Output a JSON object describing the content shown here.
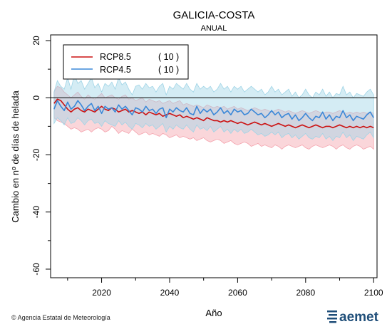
{
  "chart_data": {
    "type": "line",
    "title": "GALICIA-COSTA",
    "subtitle": "ANUAL",
    "xlabel": "Año",
    "ylabel": "Cambio en nº de días de helada",
    "xlim": [
      2005,
      2101
    ],
    "ylim": [
      -63,
      22
    ],
    "xticks": [
      2020,
      2040,
      2060,
      2080,
      2100
    ],
    "yticks": [
      20,
      0,
      -20,
      -40,
      -60
    ],
    "legend_position": "top-left",
    "reference_line": 0,
    "x_start": 2006,
    "series": [
      {
        "name": "RCP8.5",
        "count_label": "( 10 )",
        "color": "#cc1111",
        "band_color": "#f5a3ad",
        "values": [
          -2,
          -0.5,
          -1,
          -2.5,
          -4,
          -5,
          -4,
          -3.5,
          -4.5,
          -5,
          -4,
          -4.5,
          -5,
          -4,
          -3,
          -4,
          -4.5,
          -3.5,
          -4,
          -5,
          -4.5,
          -4,
          -5,
          -4.5,
          -5,
          -5.5,
          -5,
          -6,
          -5,
          -5.5,
          -6,
          -5.5,
          -6.5,
          -6,
          -5.5,
          -6,
          -6.5,
          -6,
          -7,
          -6.5,
          -7,
          -7.5,
          -7,
          -7.5,
          -8,
          -7,
          -7.5,
          -8,
          -8,
          -8.5,
          -8,
          -8.5,
          -8,
          -8.5,
          -9,
          -8.5,
          -9,
          -9.5,
          -9,
          -8.5,
          -9,
          -9.5,
          -9,
          -9.5,
          -10,
          -9.5,
          -9,
          -9.5,
          -10,
          -9.5,
          -10,
          -10.5,
          -10,
          -9.5,
          -10,
          -10.5,
          -10,
          -9.5,
          -10,
          -10.5,
          -10,
          -10,
          -10.5,
          -10,
          -9.5,
          -10,
          -10.5,
          -10,
          -10.5,
          -10,
          -10.5,
          -10,
          -10.5,
          -10,
          -10.5
        ],
        "lower": [
          -7,
          -8,
          -8.5,
          -9,
          -10,
          -11,
          -10.5,
          -11,
          -12,
          -11.5,
          -11,
          -12,
          -11,
          -10.5,
          -11,
          -12,
          -11.5,
          -10,
          -11,
          -12.5,
          -11.5,
          -12,
          -12.5,
          -11,
          -12,
          -13,
          -12.5,
          -12,
          -13,
          -12.5,
          -13,
          -13.5,
          -12.5,
          -13,
          -14,
          -13.5,
          -13,
          -14,
          -13.5,
          -14,
          -14.5,
          -14,
          -15,
          -14.5,
          -14,
          -15,
          -15.5,
          -15,
          -14.5,
          -15,
          -16,
          -15.5,
          -15,
          -16,
          -16.5,
          -16,
          -15.5,
          -16,
          -17,
          -16.5,
          -16,
          -17,
          -16.5,
          -17,
          -17.5,
          -16.5,
          -17,
          -18,
          -17,
          -16.5,
          -17,
          -17.5,
          -17,
          -16.5,
          -17.5,
          -18,
          -17,
          -16.5,
          -17,
          -17.5,
          -17,
          -16.5,
          -17,
          -18,
          -17,
          -16.5,
          -17.5,
          -18,
          -17,
          -16.5,
          -17,
          -18,
          -17.5,
          -17,
          -18
        ],
        "upper": [
          2,
          4,
          3.5,
          2,
          1,
          0,
          1,
          2,
          0.5,
          -0.5,
          1,
          0,
          -0.5,
          0.5,
          1.5,
          0,
          0.5,
          1,
          0,
          -0.5,
          0.5,
          1,
          -0.5,
          0,
          -1,
          -0.5,
          0,
          -1.5,
          -0.5,
          -1,
          -1.5,
          -1,
          -2,
          -1.5,
          -1,
          -2,
          -1.5,
          -1,
          -2.5,
          -2,
          -2.5,
          -3,
          -2.5,
          -3,
          -3.5,
          -2.5,
          -3,
          -3.5,
          -3,
          -3.5,
          -3,
          -4,
          -3.5,
          -3,
          -4,
          -3.5,
          -4,
          -4.5,
          -4,
          -3.5,
          -4,
          -4.5,
          -4,
          -4.5,
          -5,
          -4.5,
          -4,
          -4.5,
          -5,
          -4.5,
          -5,
          -5.5,
          -5,
          -4.5,
          -5,
          -5.5,
          -5,
          -4.5,
          -5,
          -5.5,
          -5,
          -5,
          -5.5,
          -5,
          -4.5,
          -5,
          -5.5,
          -5,
          -5.5,
          -5,
          -5.5,
          -5,
          -5.5,
          -5,
          -5.5
        ]
      },
      {
        "name": "RCP4.5",
        "count_label": "( 10 )",
        "color": "#3b88d8",
        "band_color": "#9fd4e6",
        "values": [
          -4,
          -1,
          -3,
          -4.5,
          -1.5,
          -4,
          -3,
          -1,
          -2.5,
          -4.5,
          -3,
          -2,
          -4.5,
          -3,
          -5.5,
          -3,
          -4,
          -3.5,
          -5,
          -2.5,
          -4,
          -3,
          -4.5,
          -6,
          -3.5,
          -4,
          -5,
          -3,
          -4.5,
          -4,
          -5.5,
          -4,
          -3.5,
          -7,
          -4,
          -5,
          -3.5,
          -4.5,
          -5,
          -3.5,
          -5.5,
          -6,
          -3,
          -5.5,
          -4,
          -5,
          -4,
          -6,
          -5,
          -3.5,
          -5.5,
          -4.5,
          -6,
          -4,
          -5,
          -4.5,
          -6,
          -5.5,
          -4,
          -5,
          -6,
          -5.5,
          -7,
          -6,
          -4.5,
          -6,
          -5,
          -7,
          -6,
          -5.5,
          -7.5,
          -6,
          -8,
          -7,
          -5.5,
          -7,
          -8,
          -6.5,
          -7,
          -5,
          -7.5,
          -6,
          -8,
          -6.5,
          -7,
          -4.5,
          -7,
          -6,
          -8,
          -6.5,
          -7,
          -7.5,
          -6,
          -5,
          -7
        ],
        "lower": [
          -9,
          -7,
          -8,
          -9.5,
          -7,
          -9,
          -8.5,
          -7,
          -8,
          -9.5,
          -8,
          -7.5,
          -9,
          -8.5,
          -10,
          -8,
          -9,
          -9.5,
          -10,
          -8,
          -9.5,
          -8.5,
          -10,
          -11,
          -9,
          -9.5,
          -10.5,
          -9,
          -10,
          -9.5,
          -11,
          -10,
          -9,
          -12,
          -10,
          -11,
          -9.5,
          -10.5,
          -11,
          -9.5,
          -11,
          -12,
          -9.5,
          -11,
          -10.5,
          -11.5,
          -10,
          -12,
          -11,
          -10,
          -12,
          -11,
          -12.5,
          -11,
          -12,
          -11,
          -12.5,
          -12,
          -11,
          -12,
          -13,
          -12.5,
          -13.5,
          -13,
          -12,
          -13,
          -12,
          -14,
          -13,
          -12.5,
          -14,
          -13,
          -14.5,
          -13.5,
          -12.5,
          -14,
          -14.5,
          -13.5,
          -14,
          -12.5,
          -14.5,
          -13.5,
          -15,
          -13.5,
          -14,
          -12,
          -14,
          -13,
          -15,
          -13.5,
          -14,
          -14.5,
          -13,
          -12,
          -14
        ],
        "upper": [
          2,
          6,
          4,
          3,
          7,
          3,
          8,
          5,
          6,
          3,
          5,
          7,
          3.5,
          5,
          2,
          5,
          4,
          5.5,
          3,
          7,
          4.5,
          5.5,
          3,
          1,
          4,
          4.5,
          3,
          5,
          3.5,
          4,
          2,
          4,
          5,
          1,
          4,
          3,
          5,
          4,
          3,
          5,
          3,
          2,
          5,
          3,
          4,
          3,
          4,
          2,
          3,
          5,
          3,
          4,
          2,
          4,
          3,
          4,
          2,
          3,
          4,
          3,
          2,
          3,
          1,
          2,
          4,
          2,
          3,
          1,
          2,
          3,
          0.5,
          2,
          0,
          1,
          3,
          1,
          0,
          2,
          1,
          3,
          0.5,
          2,
          0,
          1.5,
          1,
          4,
          1,
          2,
          0,
          1.5,
          1,
          0.5,
          2,
          3,
          1
        ]
      }
    ]
  },
  "footer": {
    "credit": "Agencia Estatal de Meteorología",
    "copyright_symbol": "©",
    "logo_text": "aemet"
  }
}
